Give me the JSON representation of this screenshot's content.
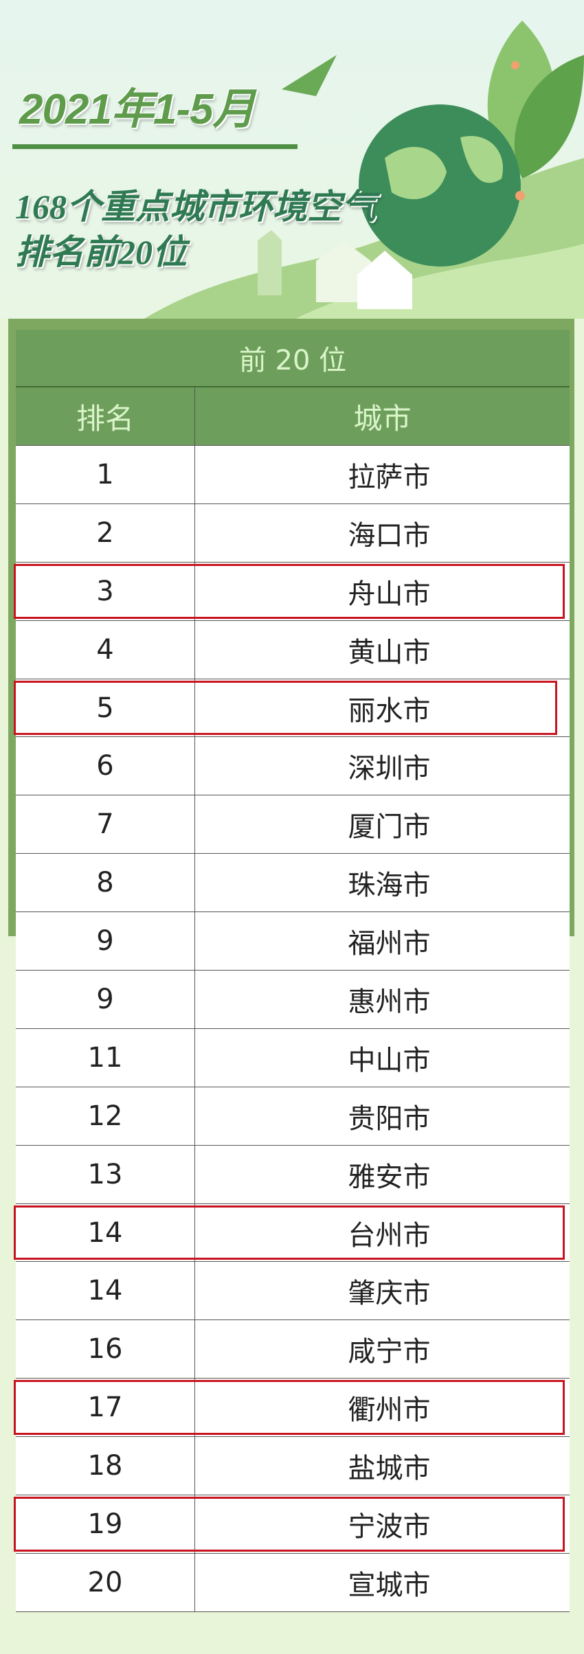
{
  "header": {
    "title_line1": "2021年1-5月",
    "title_line2": "168个重点城市环境空气",
    "title_line3": "排名前20位"
  },
  "table": {
    "caption": "前 20 位",
    "columns": [
      "排名",
      "城市"
    ],
    "rows": [
      {
        "rank": "1",
        "city": "拉萨市",
        "highlighted": false
      },
      {
        "rank": "2",
        "city": "海口市",
        "highlighted": false
      },
      {
        "rank": "3",
        "city": "舟山市",
        "highlighted": true
      },
      {
        "rank": "4",
        "city": "黄山市",
        "highlighted": false
      },
      {
        "rank": "5",
        "city": "丽水市",
        "highlighted": true
      },
      {
        "rank": "6",
        "city": "深圳市",
        "highlighted": false
      },
      {
        "rank": "7",
        "city": "厦门市",
        "highlighted": false
      },
      {
        "rank": "8",
        "city": "珠海市",
        "highlighted": false
      },
      {
        "rank": "9",
        "city": "福州市",
        "highlighted": false
      },
      {
        "rank": "9",
        "city": "惠州市",
        "highlighted": false
      },
      {
        "rank": "11",
        "city": "中山市",
        "highlighted": false
      },
      {
        "rank": "12",
        "city": "贵阳市",
        "highlighted": false
      },
      {
        "rank": "13",
        "city": "雅安市",
        "highlighted": false
      },
      {
        "rank": "14",
        "city": "台州市",
        "highlighted": true
      },
      {
        "rank": "14",
        "city": "肇庆市",
        "highlighted": false
      },
      {
        "rank": "16",
        "city": "咸宁市",
        "highlighted": false
      },
      {
        "rank": "17",
        "city": "衢州市",
        "highlighted": true
      },
      {
        "rank": "18",
        "city": "盐城市",
        "highlighted": false
      },
      {
        "rank": "19",
        "city": "宁波市",
        "highlighted": true
      },
      {
        "rank": "20",
        "city": "宣城市",
        "highlighted": false
      }
    ]
  },
  "colors": {
    "frame": "#7ea860",
    "header_bg": "#6e9e5c",
    "header_text": "#d9f5c9",
    "highlight": "#c8141e",
    "title": "#5e9c4c",
    "subtitle": "#2f7a52"
  }
}
